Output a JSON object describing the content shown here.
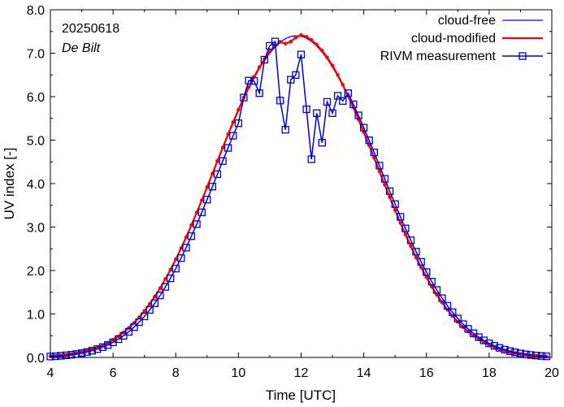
{
  "chart_data": {
    "type": "line",
    "xlabel": "Time  [UTC]",
    "ylabel": "UV index  [-]",
    "xlim": [
      4,
      20
    ],
    "ylim": [
      0,
      8
    ],
    "xticks": [
      4,
      6,
      8,
      10,
      12,
      14,
      16,
      18,
      20
    ],
    "xtick_labels": [
      "4",
      "6",
      "8",
      "10",
      "12",
      "14",
      "16",
      "18",
      "20"
    ],
    "yticks": [
      0,
      1,
      2,
      3,
      4,
      5,
      6,
      7,
      8
    ],
    "ytick_labels": [
      "0.0",
      "1.0",
      "2.0",
      "3.0",
      "4.0",
      "5.0",
      "6.0",
      "7.0",
      "8.0"
    ],
    "grid": false,
    "legend_position": "top-right",
    "annotations": {
      "date": "20250618",
      "location": "De Bilt"
    },
    "model": {
      "peak_time": 11.85,
      "cloud_free_peak": 7.4,
      "width_hours": 2.55,
      "step_minutes": 10
    },
    "series": [
      {
        "name": "cloud-free",
        "color": "#0000ff",
        "style": "line"
      },
      {
        "name": "cloud-modified",
        "color": "#ff0000",
        "style": "line-dots",
        "overrides": [
          {
            "t": 11.33,
            "v": 7.26
          },
          {
            "t": 11.5,
            "v": 7.22
          },
          {
            "t": 11.67,
            "v": 7.27
          },
          {
            "t": 11.83,
            "v": 7.36
          },
          {
            "t": 12.0,
            "v": 7.42
          }
        ]
      },
      {
        "name": "RIVM measurement",
        "color": "#0000cc",
        "style": "line-squares",
        "overrides": [
          {
            "t": 10.17,
            "v": 5.98
          },
          {
            "t": 10.33,
            "v": 6.37
          },
          {
            "t": 10.5,
            "v": 6.36
          },
          {
            "t": 10.67,
            "v": 6.08
          },
          {
            "t": 10.83,
            "v": 6.85
          },
          {
            "t": 11.0,
            "v": 7.17
          },
          {
            "t": 11.17,
            "v": 7.27
          },
          {
            "t": 11.33,
            "v": 5.91
          },
          {
            "t": 11.5,
            "v": 5.24
          },
          {
            "t": 11.67,
            "v": 6.39
          },
          {
            "t": 11.83,
            "v": 6.5
          },
          {
            "t": 12.0,
            "v": 6.97
          },
          {
            "t": 12.17,
            "v": 5.71
          },
          {
            "t": 12.33,
            "v": 4.56
          },
          {
            "t": 12.5,
            "v": 5.62
          },
          {
            "t": 12.67,
            "v": 4.94
          },
          {
            "t": 12.83,
            "v": 5.88
          },
          {
            "t": 13.0,
            "v": 5.62
          },
          {
            "t": 13.17,
            "v": 6.02
          },
          {
            "t": 13.33,
            "v": 5.9
          }
        ]
      }
    ]
  }
}
